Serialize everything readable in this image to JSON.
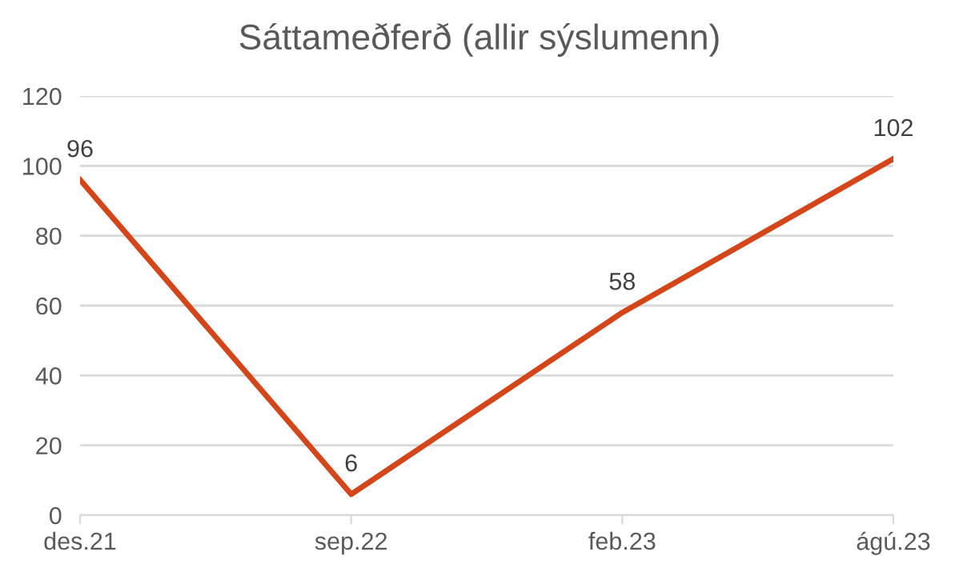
{
  "chart_data": {
    "type": "line",
    "title": "Sáttameðferð (allir sýslumenn)",
    "categories": [
      "des.21",
      "sep.22",
      "feb.23",
      "ágú.23"
    ],
    "series": [
      {
        "color": "#d4461a",
        "values": [
          96,
          6,
          58,
          102
        ]
      }
    ],
    "ylim": [
      0,
      120
    ],
    "yticks": [
      0,
      20,
      40,
      60,
      80,
      100,
      120
    ],
    "grid": "y",
    "data_labels": true,
    "marker": "none",
    "line_style": "solid",
    "legend": false
  }
}
